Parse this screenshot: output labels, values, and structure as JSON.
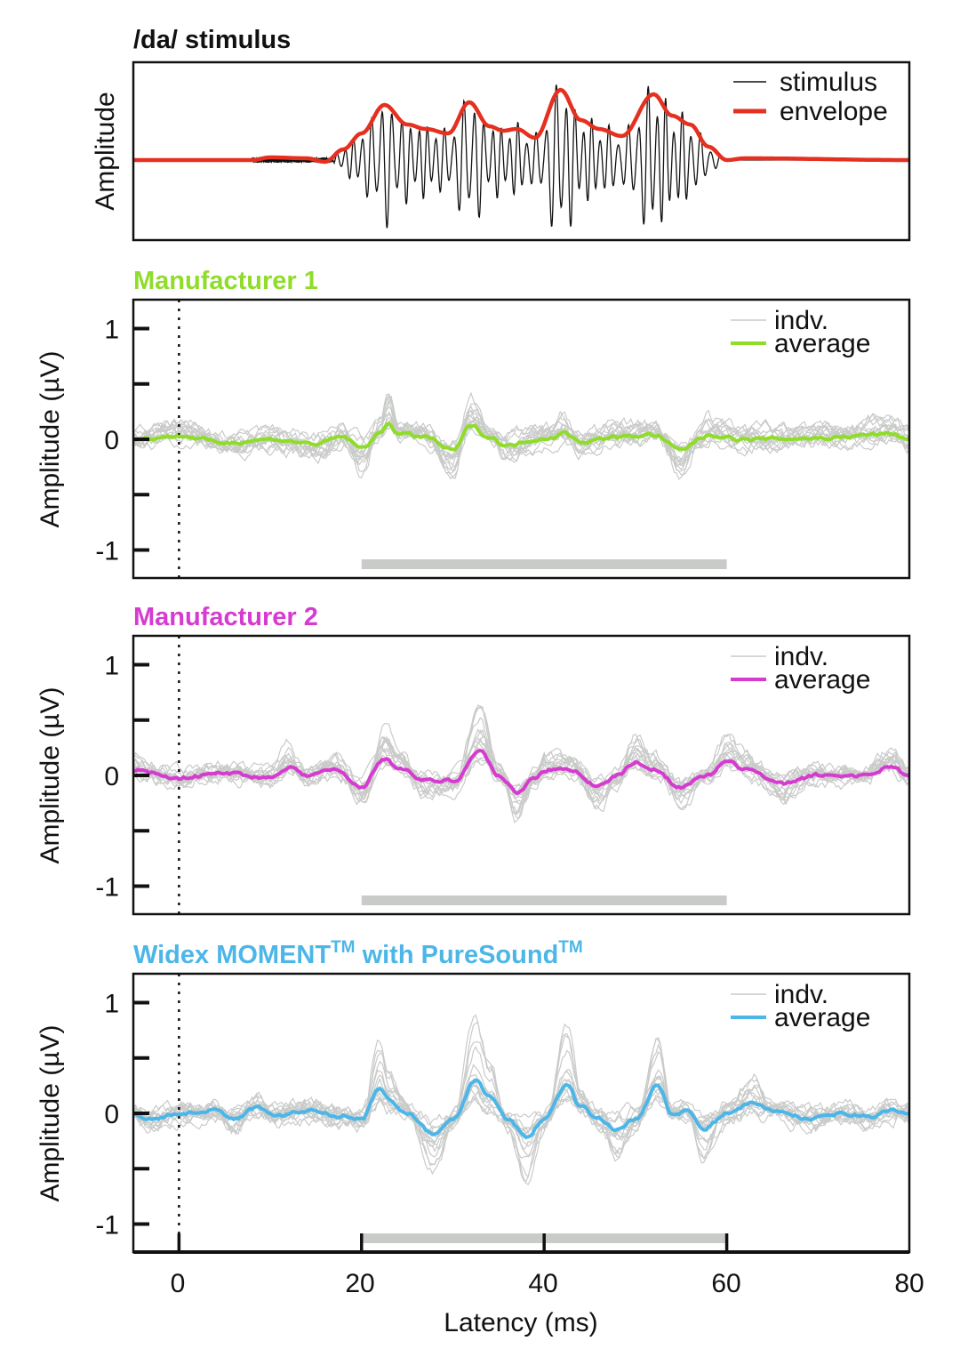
{
  "chart_data": [
    {
      "type": "line",
      "title": "/da/ stimulus",
      "ylabel": "Amplitude",
      "xlim": [
        -5,
        80
      ],
      "legend": {
        "placement": "top-right",
        "entries": [
          "stimulus",
          "envelope"
        ]
      },
      "colors": {
        "stimulus": "#111111",
        "envelope": "#e5301f"
      },
      "series": [
        {
          "name": "envelope",
          "points": [
            [
              -5,
              0
            ],
            [
              8,
              0
            ],
            [
              10,
              0.03
            ],
            [
              14,
              0.02
            ],
            [
              16,
              -0.02
            ],
            [
              18,
              0.12
            ],
            [
              20,
              0.3
            ],
            [
              22.5,
              0.62
            ],
            [
              25,
              0.4
            ],
            [
              27,
              0.35
            ],
            [
              29.5,
              0.3
            ],
            [
              31.8,
              0.65
            ],
            [
              34,
              0.38
            ],
            [
              35.5,
              0.33
            ],
            [
              37,
              0.35
            ],
            [
              39,
              0.25
            ],
            [
              41.8,
              0.79
            ],
            [
              44,
              0.45
            ],
            [
              46,
              0.35
            ],
            [
              48.5,
              0.27
            ],
            [
              52,
              0.74
            ],
            [
              54,
              0.5
            ],
            [
              56,
              0.4
            ],
            [
              58,
              0.15
            ],
            [
              60,
              0
            ],
            [
              62,
              0.02
            ],
            [
              80,
              0
            ]
          ]
        }
      ]
    },
    {
      "type": "line",
      "title": "Manufacturer 1",
      "title_color": "#8fdc2a",
      "xlabel": "",
      "ylabel": "Amplitude (µV)",
      "xlim": [
        -5,
        80
      ],
      "ylim": [
        -1.25,
        1.25
      ],
      "yticks": [
        "1",
        "0",
        "-1"
      ],
      "analysis_window": [
        20,
        60
      ],
      "stimulus_onset": 0,
      "legend": {
        "placement": "top-right",
        "entries": [
          "indv.",
          "average"
        ]
      },
      "colors": {
        "indv": "#c9cbc9",
        "average": "#8fdc2a"
      },
      "series": [
        {
          "name": "average",
          "points": [
            [
              -5,
              0
            ],
            [
              0,
              0.03
            ],
            [
              5,
              -0.03
            ],
            [
              10,
              0.0
            ],
            [
              15,
              -0.04
            ],
            [
              18,
              0.02
            ],
            [
              20,
              -0.08
            ],
            [
              22,
              0.05
            ],
            [
              23,
              0.15
            ],
            [
              24,
              0.05
            ],
            [
              27,
              0.02
            ],
            [
              30,
              -0.1
            ],
            [
              32,
              0.12
            ],
            [
              34,
              0.02
            ],
            [
              36,
              -0.06
            ],
            [
              39,
              0.0
            ],
            [
              41,
              0.02
            ],
            [
              42,
              0.06
            ],
            [
              44,
              -0.02
            ],
            [
              48,
              0.02
            ],
            [
              52,
              0.04
            ],
            [
              55,
              -0.1
            ],
            [
              57,
              0.0
            ],
            [
              58,
              0.04
            ],
            [
              62,
              0.0
            ],
            [
              70,
              0.01
            ],
            [
              78,
              0.05
            ],
            [
              80,
              0.0
            ]
          ]
        }
      ]
    },
    {
      "type": "line",
      "title": "Manufacturer 2",
      "title_color": "#d63bd0",
      "xlabel": "",
      "ylabel": "Amplitude (µV)",
      "xlim": [
        -5,
        80
      ],
      "ylim": [
        -1.25,
        1.25
      ],
      "yticks": [
        "1",
        "0",
        "-1"
      ],
      "analysis_window": [
        20,
        60
      ],
      "stimulus_onset": 0,
      "legend": {
        "placement": "top-right",
        "entries": [
          "indv.",
          "average"
        ]
      },
      "colors": {
        "indv": "#c9cbc9",
        "average": "#d63bd0"
      },
      "series": [
        {
          "name": "average",
          "points": [
            [
              -5,
              0.05
            ],
            [
              0,
              -0.02
            ],
            [
              5,
              0.02
            ],
            [
              10,
              -0.02
            ],
            [
              12,
              0.08
            ],
            [
              14,
              0.0
            ],
            [
              17,
              0.05
            ],
            [
              20,
              -0.1
            ],
            [
              22.5,
              0.15
            ],
            [
              24,
              0.08
            ],
            [
              27,
              -0.05
            ],
            [
              30,
              -0.05
            ],
            [
              33,
              0.22
            ],
            [
              35,
              0.0
            ],
            [
              37,
              -0.15
            ],
            [
              39,
              -0.02
            ],
            [
              40,
              0.05
            ],
            [
              43,
              0.05
            ],
            [
              46,
              -0.1
            ],
            [
              48,
              0.0
            ],
            [
              50,
              0.12
            ],
            [
              52,
              0.05
            ],
            [
              55,
              -0.1
            ],
            [
              58,
              0.0
            ],
            [
              60,
              0.12
            ],
            [
              62,
              0.06
            ],
            [
              66,
              -0.08
            ],
            [
              70,
              0.0
            ],
            [
              75,
              0.0
            ],
            [
              78,
              0.08
            ],
            [
              80,
              0.0
            ]
          ]
        }
      ]
    },
    {
      "type": "line",
      "title_parts": [
        "Widex MOMENT",
        "TM",
        " with PureSound",
        "TM"
      ],
      "title_color": "#4cb6e8",
      "xlabel": "Latency (ms)",
      "ylabel": "Amplitude (µV)",
      "xlim": [
        -5,
        80
      ],
      "ylim": [
        -1.25,
        1.25
      ],
      "xticks": [
        "0",
        "20",
        "40",
        "60",
        "80"
      ],
      "yticks": [
        "1",
        "0",
        "-1"
      ],
      "analysis_window": [
        20,
        60
      ],
      "stimulus_onset": 0,
      "legend": {
        "placement": "top-right",
        "entries": [
          "indv.",
          "average"
        ]
      },
      "colors": {
        "indv": "#c9cbc9",
        "average": "#4cb6e8"
      },
      "series": [
        {
          "name": "average",
          "points": [
            [
              -5,
              0
            ],
            [
              -3,
              -0.05
            ],
            [
              0,
              0.0
            ],
            [
              4,
              0.02
            ],
            [
              6,
              -0.05
            ],
            [
              8.5,
              0.05
            ],
            [
              11,
              -0.02
            ],
            [
              14,
              0.02
            ],
            [
              18,
              -0.02
            ],
            [
              20,
              -0.05
            ],
            [
              22,
              0.22
            ],
            [
              23,
              0.12
            ],
            [
              25,
              0.0
            ],
            [
              28,
              -0.2
            ],
            [
              30,
              -0.05
            ],
            [
              32.5,
              0.3
            ],
            [
              34,
              0.15
            ],
            [
              36,
              -0.05
            ],
            [
              38,
              -0.22
            ],
            [
              40,
              -0.05
            ],
            [
              42.5,
              0.27
            ],
            [
              44,
              0.05
            ],
            [
              46,
              -0.05
            ],
            [
              48,
              -0.15
            ],
            [
              50,
              -0.05
            ],
            [
              52.5,
              0.25
            ],
            [
              54,
              0.0
            ],
            [
              55.5,
              0.02
            ],
            [
              57.5,
              -0.15
            ],
            [
              60,
              0.0
            ],
            [
              63,
              0.1
            ],
            [
              65,
              0.02
            ],
            [
              69.5,
              -0.05
            ],
            [
              73,
              0.0
            ],
            [
              76,
              -0.03
            ],
            [
              78,
              0.03
            ],
            [
              80,
              0.0
            ]
          ]
        }
      ]
    }
  ]
}
